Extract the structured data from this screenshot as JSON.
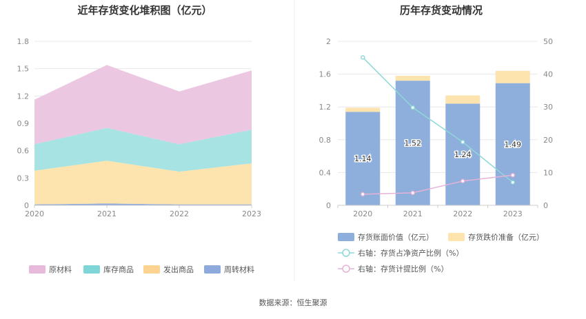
{
  "source_text": "数据来源：恒生聚源",
  "chart_data": [
    {
      "type": "area",
      "stacked": true,
      "title": "近年存货变化堆积图（亿元）",
      "x": [
        "2020",
        "2021",
        "2022",
        "2023"
      ],
      "ylim": [
        0,
        1.8
      ],
      "yticks": [
        "0",
        "0.3",
        "0.6",
        "0.9",
        "1.2",
        "1.5",
        "1.8"
      ],
      "grid": true,
      "legend_position": "bottom",
      "series": [
        {
          "name": "周转材料",
          "values": [
            0.01,
            0.02,
            0.01,
            0.01
          ],
          "color": "#8eaadc"
        },
        {
          "name": "发出商品",
          "values": [
            0.37,
            0.47,
            0.36,
            0.45
          ],
          "color": "#fde3ae"
        },
        {
          "name": "库存商品",
          "values": [
            0.29,
            0.36,
            0.3,
            0.37
          ],
          "color": "#a8e3e4"
        },
        {
          "name": "原材料",
          "values": [
            0.49,
            0.69,
            0.58,
            0.65
          ],
          "color": "#ecc7e1"
        }
      ],
      "legend_order": [
        "原材料",
        "库存商品",
        "发出商品",
        "周转材料"
      ],
      "legend_colors": {
        "原材料": "#e7b9da",
        "库存商品": "#7fd6d8",
        "发出商品": "#fdd391",
        "周转材料": "#8eaadc"
      }
    },
    {
      "type": "bar",
      "stacked": true,
      "title": "历年存货变动情况",
      "categories": [
        "2020",
        "2021",
        "2022",
        "2023"
      ],
      "ylim": [
        0,
        2
      ],
      "yticks": [
        "0",
        "0.4",
        "0.8",
        "1.2",
        "1.6",
        "2"
      ],
      "y2lim": [
        0,
        50
      ],
      "y2ticks": [
        "0",
        "10",
        "20",
        "30",
        "40",
        "50"
      ],
      "grid": true,
      "legend_position": "bottom",
      "series": [
        {
          "name": "存货账面价值（亿元）",
          "values": [
            1.14,
            1.52,
            1.24,
            1.49
          ],
          "labels": [
            "1.14",
            "1.52",
            "1.24",
            "1.49"
          ],
          "color": "#8eaedc"
        },
        {
          "name": "存货跌价准备（亿元）",
          "values": [
            0.05,
            0.06,
            0.1,
            0.15
          ],
          "color": "#fde3ae"
        }
      ],
      "lines": [
        {
          "name": "右轴：存货占净资产比例（%）",
          "axis": "right",
          "values": [
            45.1,
            29.8,
            19.3,
            7.0
          ],
          "color": "#8ed8d8"
        },
        {
          "name": "右轴：存货计提比例（%）",
          "axis": "right",
          "values": [
            3.4,
            3.8,
            7.4,
            9.2
          ],
          "color": "#e6b3d6"
        }
      ]
    }
  ]
}
